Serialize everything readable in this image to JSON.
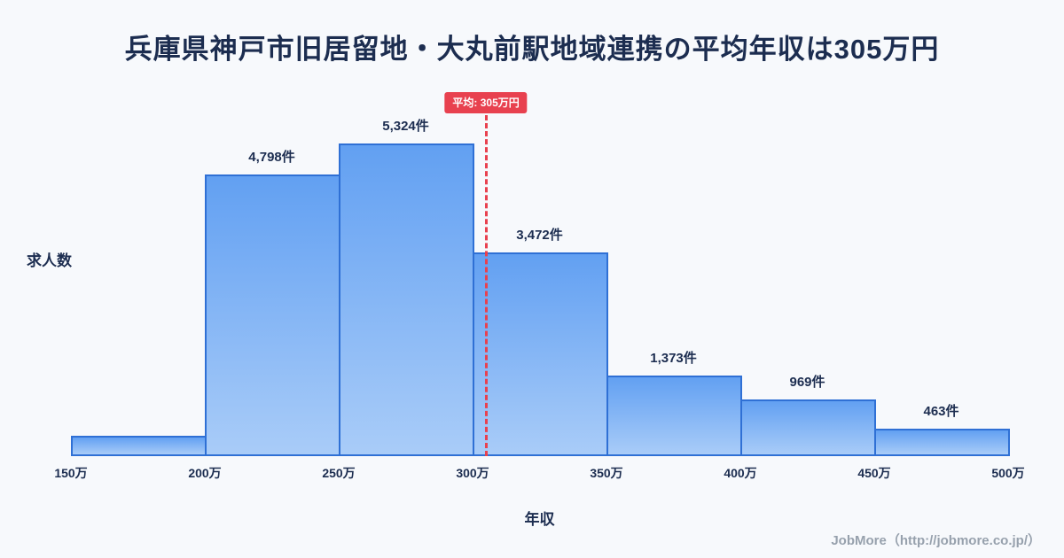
{
  "chart_data": {
    "type": "bar",
    "title": "兵庫県神戸市旧居留地・大丸前駅地域連携の平均年収は305万円",
    "xlabel": "年収",
    "ylabel": "求人数",
    "x_ticks": [
      "150万",
      "200万",
      "250万",
      "300万",
      "350万",
      "400万",
      "450万",
      "500万"
    ],
    "x_min": 150,
    "x_max": 500,
    "bins": [
      "150万-200万",
      "200万-250万",
      "250万-300万",
      "300万-350万",
      "350万-400万",
      "400万-450万",
      "450万-500万"
    ],
    "values": [
      350,
      4798,
      5324,
      3472,
      1373,
      969,
      463
    ],
    "bar_labels": [
      "",
      "4,798件",
      "5,324件",
      "3,472件",
      "1,373件",
      "969件",
      "463件"
    ],
    "average": 305,
    "average_label": "平均: 305万円",
    "ylim": [
      0,
      5800
    ],
    "grid": false,
    "legend": "none"
  },
  "footer": {
    "credit": "JobMore（http://jobmore.co.jp/）"
  },
  "colors": {
    "background": "#f7f9fc",
    "title_text": "#1c2d50",
    "bar_fill_top": "#62a0f2",
    "bar_fill_bottom": "#a9ccf8",
    "bar_border": "#2f70d5",
    "average_accent": "#e8414f",
    "footer_text": "#97a1ad"
  }
}
